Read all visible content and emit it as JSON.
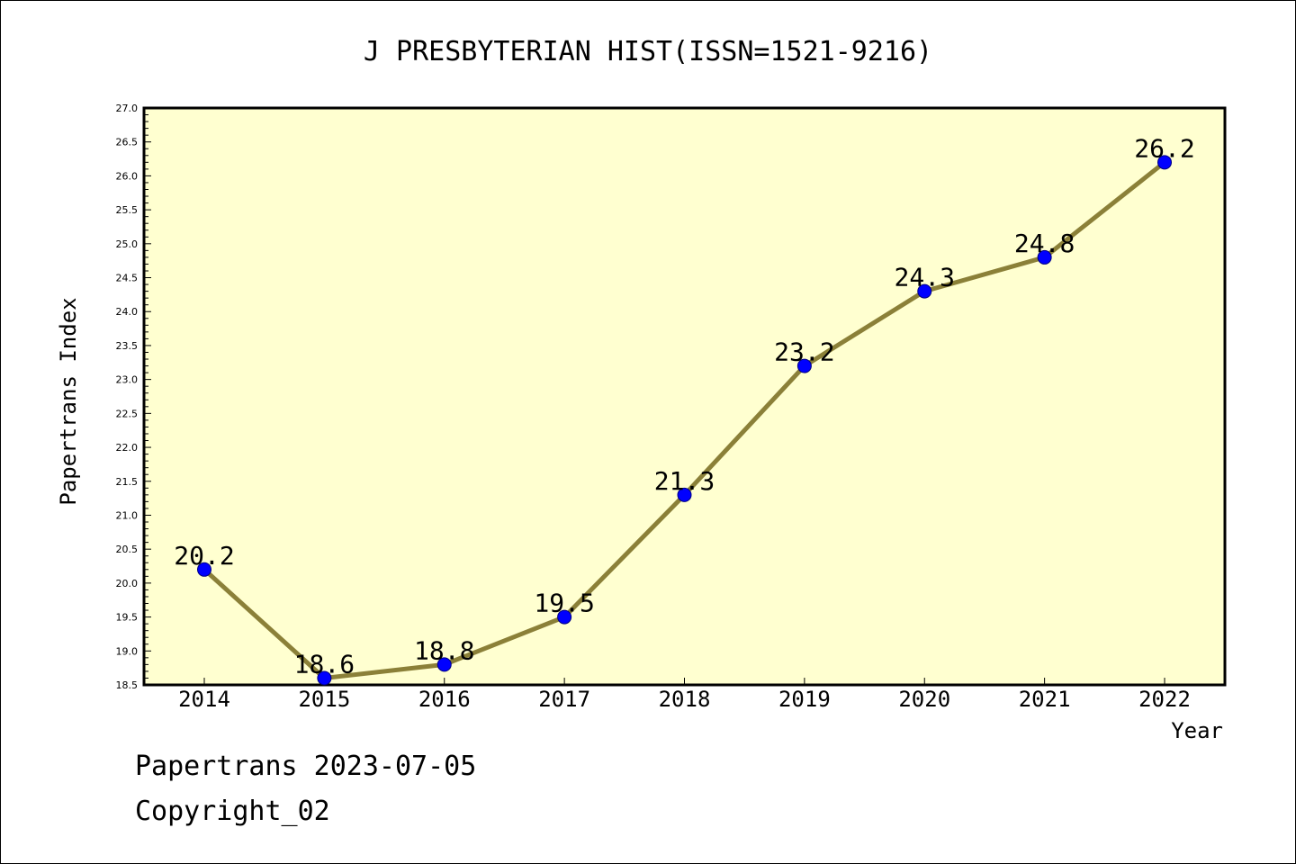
{
  "chart_data": {
    "type": "line",
    "title": "J PRESBYTERIAN HIST(ISSN=1521-9216)",
    "xlabel": "Year",
    "ylabel": "Papertrans Index",
    "categories": [
      "2014",
      "2015",
      "2016",
      "2017",
      "2018",
      "2019",
      "2020",
      "2021",
      "2022"
    ],
    "series": [
      {
        "values": [
          20.2,
          18.6,
          18.8,
          19.5,
          21.3,
          23.2,
          24.3,
          24.8,
          26.2
        ],
        "labels": [
          "20.2",
          "18.6",
          "18.8",
          "19.5",
          "21.3",
          "23.2",
          "24.3",
          "24.8",
          "26.2"
        ]
      }
    ],
    "ylim": [
      18.5,
      27.0
    ],
    "yticks": [
      "18.5",
      "19.0",
      "19.5",
      "20.0",
      "20.5",
      "21.0",
      "21.5",
      "22.0",
      "22.5",
      "23.0",
      "23.5",
      "24.0",
      "24.5",
      "25.0",
      "25.5",
      "26.0",
      "26.5",
      "27.0"
    ],
    "grid": false,
    "colors": {
      "plot_background": "#ffffd0",
      "line": "#8b8038",
      "marker_fill": "#0000ff",
      "marker_stroke": "#000080"
    }
  },
  "footer": {
    "line1": "Papertrans 2023-07-05",
    "line2": "Copyright_02"
  }
}
